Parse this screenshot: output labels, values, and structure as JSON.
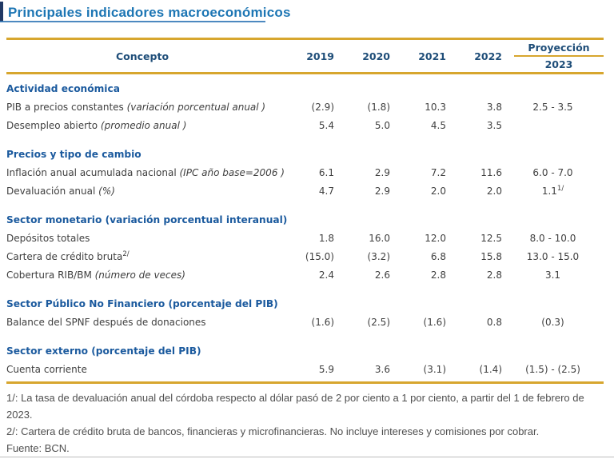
{
  "page": {
    "title": "Principales indicadores macroeconómicos"
  },
  "colors": {
    "title_blue": "#1D76B4",
    "accent_bar_navy": "#203864",
    "header_navy": "#1F4E79",
    "section_blue": "#1B5A9E",
    "gold_rule": "#D7A62E",
    "body_text": "#3F3F3F",
    "footnote_text": "#4F4F4F"
  },
  "table": {
    "header": {
      "concept": "Concepto",
      "years": [
        "2019",
        "2020",
        "2021",
        "2022"
      ],
      "projection_label": "Proyección",
      "projection_year": "2023"
    },
    "sections": [
      {
        "title": "Actividad económica",
        "rows": [
          {
            "label": "PIB a precios constantes",
            "note": "(variación porcentual anual )",
            "sup": "",
            "values": [
              "(2.9)",
              "(1.8)",
              "10.3",
              "3.8"
            ],
            "projection": "2.5 - 3.5",
            "projection_sup": ""
          },
          {
            "label": "Desempleo abierto",
            "note": "(promedio anual )",
            "sup": "",
            "values": [
              "5.4",
              "5.0",
              "4.5",
              "3.5"
            ],
            "projection": "",
            "projection_sup": ""
          }
        ]
      },
      {
        "title": "Precios y tipo de cambio",
        "rows": [
          {
            "label": "Inflación anual acumulada nacional",
            "note": "(IPC año base=2006 )",
            "sup": "",
            "values": [
              "6.1",
              "2.9",
              "7.2",
              "11.6"
            ],
            "projection": "6.0 - 7.0",
            "projection_sup": ""
          },
          {
            "label": "Devaluación anual",
            "note": "(%)",
            "sup": "",
            "values": [
              "4.7",
              "2.9",
              "2.0",
              "2.0"
            ],
            "projection": "1.1",
            "projection_sup": "1/"
          }
        ]
      },
      {
        "title": "Sector monetario (variación porcentual interanual)",
        "rows": [
          {
            "label": "Depósitos totales",
            "note": "",
            "sup": "",
            "values": [
              "1.8",
              "16.0",
              "12.0",
              "12.5"
            ],
            "projection": "8.0 - 10.0",
            "projection_sup": ""
          },
          {
            "label": "Cartera de crédito bruta",
            "note": "",
            "sup": "2/",
            "values": [
              "(15.0)",
              "(3.2)",
              "6.8",
              "15.8"
            ],
            "projection": "13.0 - 15.0",
            "projection_sup": ""
          },
          {
            "label": "Cobertura RIB/BM",
            "note": "(número de veces)",
            "sup": "",
            "values": [
              "2.4",
              "2.6",
              "2.8",
              "2.8"
            ],
            "projection": "3.1",
            "projection_sup": ""
          }
        ]
      },
      {
        "title": "Sector Público No Financiero (porcentaje del PIB)",
        "rows": [
          {
            "label": "Balance del SPNF después de donaciones",
            "note": "",
            "sup": "",
            "values": [
              "(1.6)",
              "(2.5)",
              "(1.6)",
              "0.8"
            ],
            "projection": "(0.3)",
            "projection_sup": ""
          }
        ]
      },
      {
        "title": "Sector externo (porcentaje del PIB)",
        "rows": [
          {
            "label": "Cuenta corriente",
            "note": "",
            "sup": "",
            "values": [
              "5.9",
              "3.6",
              "(3.1)",
              "(1.4)"
            ],
            "projection": "(1.5) - (2.5)",
            "projection_sup": ""
          }
        ]
      }
    ]
  },
  "footnotes": [
    "1/: La tasa de devaluación anual del córdoba respecto al dólar pasó de 2 por ciento a 1 por ciento, a partir del 1 de febrero de 2023.",
    "2/: Cartera de crédito bruta de bancos, financieras y microfinancieras. No incluye intereses y comisiones por cobrar.",
    "Fuente: BCN."
  ]
}
